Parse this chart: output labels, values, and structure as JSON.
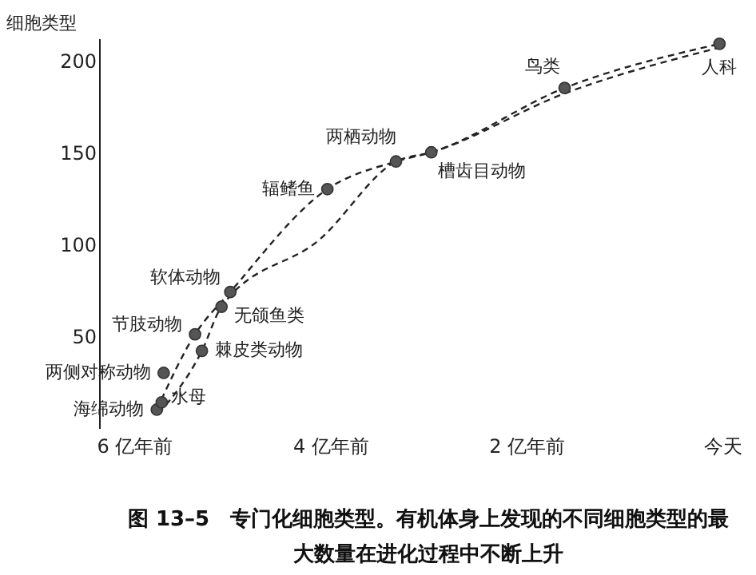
{
  "chart_data": {
    "type": "scatter",
    "ylabel": "细胞类型",
    "xlim": [
      -6,
      0
    ],
    "xticks": [
      {
        "value": -6,
        "label": "6 亿年前"
      },
      {
        "value": -4,
        "label": "4 亿年前"
      },
      {
        "value": -2,
        "label": "2 亿年前"
      },
      {
        "value": 0,
        "label": "今天"
      }
    ],
    "ylim": [
      0,
      212
    ],
    "yticks": [
      50,
      100,
      150,
      200
    ],
    "grid": false,
    "series": [
      {
        "type": "line",
        "color": "#222222",
        "line_style": "dashed",
        "marker": "none",
        "x": [
          -5.77,
          -5.38,
          -5.02,
          -4.03,
          -3.33,
          -2.97,
          -1.61,
          -0.03
        ],
        "values": [
          10,
          51,
          74,
          130,
          145,
          150,
          185,
          209
        ]
      },
      {
        "type": "line",
        "color": "#222222",
        "line_style": "dashed",
        "marker": "none",
        "x": [
          -5.75,
          -5.31,
          -5.11,
          -4.1,
          -3.33,
          -2.97,
          -1.61,
          -0.03
        ],
        "values": [
          8,
          42,
          66,
          103,
          145,
          150,
          182,
          207
        ]
      },
      {
        "color": "#555555",
        "marker": "circle",
        "x": [
          -5.77,
          -5.72,
          -5.7,
          -5.38,
          -5.31,
          -5.11,
          -5.02,
          -4.03,
          -3.33,
          -2.97,
          -1.61,
          -0.03
        ],
        "values": [
          10,
          14,
          30,
          51,
          42,
          66,
          74,
          130,
          145,
          150,
          185,
          209
        ]
      }
    ],
    "annotations": [
      {
        "text": "海绵动物",
        "x": -5.77,
        "y": 10
      },
      {
        "text": "水母",
        "x": -5.72,
        "y": 14
      },
      {
        "text": "两侧对称动物",
        "x": -5.7,
        "y": 30
      },
      {
        "text": "节肢动物",
        "x": -5.38,
        "y": 51
      },
      {
        "text": "棘皮类动物",
        "x": -5.31,
        "y": 42
      },
      {
        "text": "无颌鱼类",
        "x": -5.11,
        "y": 66
      },
      {
        "text": "软体动物",
        "x": -5.02,
        "y": 74
      },
      {
        "text": "辐鳍鱼",
        "x": -4.03,
        "y": 130
      },
      {
        "text": "两栖动物",
        "x": -3.33,
        "y": 145
      },
      {
        "text": "槽齿目动物",
        "x": -2.97,
        "y": 150
      },
      {
        "text": "鸟类",
        "x": -1.61,
        "y": 185
      },
      {
        "text": "人科",
        "x": -0.03,
        "y": 209
      },
      "图 13–5　专门化细胞类型。有机体身上发现的不同细胞类型的最大数量在进化过程中不断上升"
    ]
  }
}
